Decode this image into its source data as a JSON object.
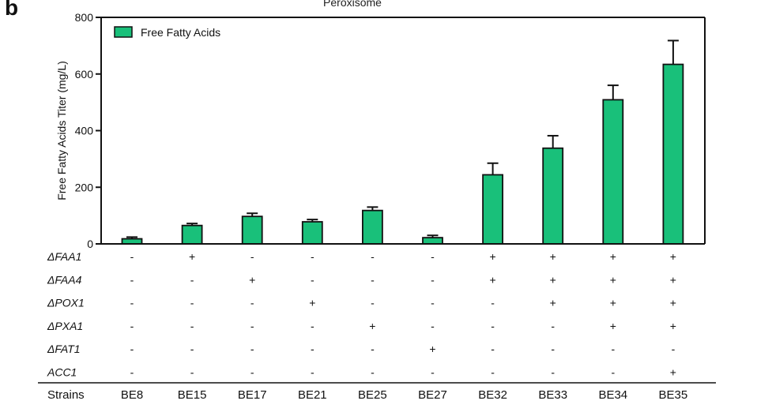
{
  "panel_label": "b",
  "chart_data": {
    "type": "bar",
    "title": "Peroxisome",
    "xlabel": "Strains",
    "ylabel": "Free Fatty Acids Titer (mg/L)",
    "ylim": [
      0,
      800
    ],
    "yticks": [
      "0",
      "200",
      "400",
      "600",
      "800"
    ],
    "categories": [
      "BE8",
      "BE15",
      "BE17",
      "BE21",
      "BE25",
      "BE27",
      "BE32",
      "BE33",
      "BE34",
      "BE35"
    ],
    "series": [
      {
        "name": "Free Fatty Acids",
        "color": "#19c07a",
        "values": [
          18,
          65,
          97,
          78,
          118,
          22,
          244,
          338,
          509,
          634
        ],
        "errors": [
          6,
          7,
          11,
          8,
          12,
          8,
          41,
          44,
          51,
          84
        ]
      }
    ],
    "legend_position": "top-left",
    "genotype_rows": [
      {
        "label": "ΔFAA1",
        "marks": [
          "-",
          "+",
          "-",
          "-",
          "-",
          "-",
          "+",
          "+",
          "+",
          "+"
        ]
      },
      {
        "label": "ΔFAA4",
        "marks": [
          "-",
          "-",
          "+",
          "-",
          "-",
          "-",
          "+",
          "+",
          "+",
          "+"
        ]
      },
      {
        "label": "ΔPOX1",
        "marks": [
          "-",
          "-",
          "-",
          "+",
          "-",
          "-",
          "-",
          "+",
          "+",
          "+"
        ]
      },
      {
        "label": "ΔPXA1",
        "marks": [
          "-",
          "-",
          "-",
          "-",
          "+",
          "-",
          "-",
          "-",
          "+",
          "+"
        ]
      },
      {
        "label": "ΔFAT1",
        "marks": [
          "-",
          "-",
          "-",
          "-",
          "-",
          "+",
          "-",
          "-",
          "-",
          "-"
        ]
      },
      {
        "label": "ACC1",
        "marks": [
          "-",
          "-",
          "-",
          "-",
          "-",
          "-",
          "-",
          "-",
          "-",
          "+"
        ]
      }
    ]
  }
}
